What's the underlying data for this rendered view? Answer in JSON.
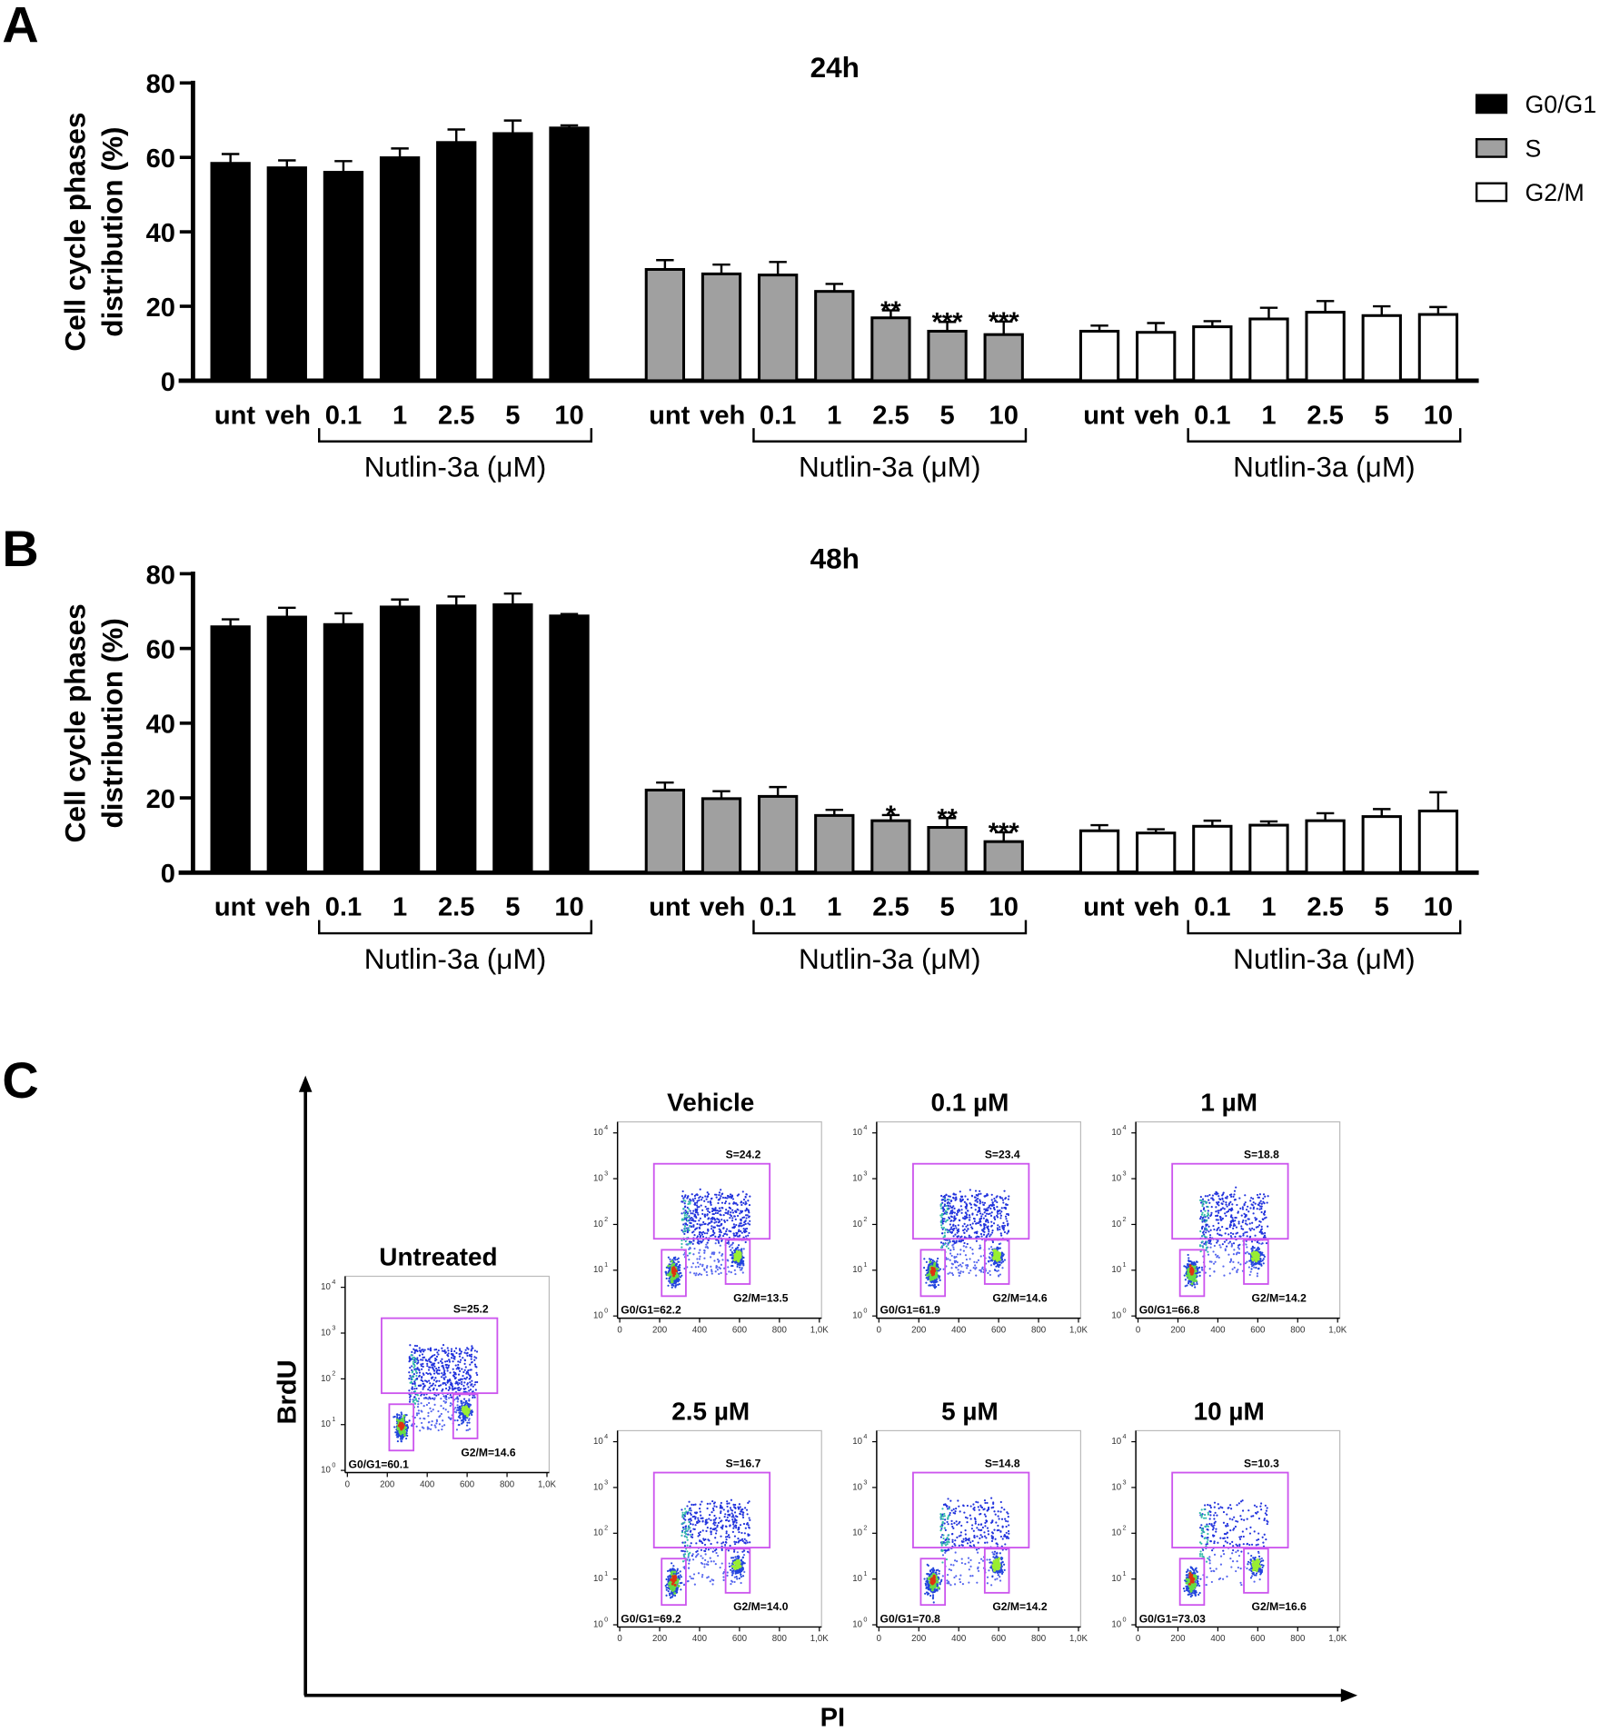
{
  "panel_labels": [
    "A",
    "B",
    "C"
  ],
  "legend": [
    {
      "label": "G0/G1",
      "color": "#000000"
    },
    {
      "label": "S",
      "color": "#a0a0a0"
    },
    {
      "label": "G2/M",
      "color": "#ffffff"
    }
  ],
  "chart_data": [
    {
      "type": "bar",
      "title": "24h",
      "ylabel": "Cell cycle phases distribution (%)",
      "ylim": [
        0,
        80
      ],
      "yticks": [
        "0",
        "20",
        "40",
        "60",
        "80"
      ],
      "categories": [
        "unt",
        "veh",
        "0.1",
        "1",
        "2.5",
        "5",
        "10"
      ],
      "group_label": "Nutlin-3a (μM)",
      "series": [
        {
          "name": "G0/G1",
          "values": [
            58.4,
            57.2,
            56.0,
            59.9,
            64.0,
            66.4,
            67.9
          ],
          "errors": [
            2.5,
            2.0,
            3.0,
            2.5,
            3.5,
            3.5,
            0.7
          ],
          "sig": [
            "",
            "",
            "",
            "",
            "",
            "",
            ""
          ]
        },
        {
          "name": "S",
          "values": [
            29.9,
            28.7,
            28.4,
            24.0,
            16.9,
            13.3,
            12.4
          ],
          "errors": [
            2.5,
            2.5,
            3.5,
            2.0,
            2.0,
            2.5,
            3.5
          ],
          "sig": [
            "",
            "",
            "",
            "",
            "**",
            "***",
            "***"
          ]
        },
        {
          "name": "G2/M",
          "values": [
            13.3,
            13.0,
            14.5,
            16.6,
            18.4,
            17.5,
            17.8
          ],
          "errors": [
            1.5,
            2.5,
            1.5,
            3.0,
            3.0,
            2.5,
            2.0
          ],
          "sig": [
            "",
            "",
            "",
            "",
            "",
            "",
            ""
          ]
        }
      ]
    },
    {
      "type": "bar",
      "title": "48h",
      "ylabel": "Cell cycle phases distribution (%)",
      "ylim": [
        0,
        80
      ],
      "yticks": [
        "0",
        "20",
        "40",
        "60",
        "80"
      ],
      "categories": [
        "unt",
        "veh",
        "0.1",
        "1",
        "2.5",
        "5",
        "10"
      ],
      "group_label": "Nutlin-3a (μM)",
      "series": [
        {
          "name": "G0/G1",
          "values": [
            65.8,
            68.4,
            66.4,
            71.1,
            71.4,
            71.7,
            68.7
          ],
          "errors": [
            2.0,
            2.5,
            3.0,
            2.0,
            2.5,
            3.0,
            0.5
          ],
          "sig": [
            "",
            "",
            "",
            "",
            "",
            "",
            ""
          ]
        },
        {
          "name": "S",
          "values": [
            22.1,
            19.8,
            20.4,
            15.3,
            13.9,
            12.1,
            8.3
          ],
          "errors": [
            2.0,
            2.0,
            2.5,
            1.5,
            1.5,
            2.5,
            2.5
          ],
          "sig": [
            "",
            "",
            "",
            "",
            "*",
            "**",
            "***"
          ]
        },
        {
          "name": "G2/M",
          "values": [
            11.2,
            10.6,
            12.4,
            12.7,
            13.9,
            15.0,
            16.5
          ],
          "errors": [
            1.5,
            1.0,
            1.5,
            1.0,
            2.0,
            2.0,
            5.0
          ],
          "sig": [
            "",
            "",
            "",
            "",
            "",
            "",
            ""
          ]
        }
      ]
    }
  ],
  "flow": {
    "y_axis_label": "BrdU",
    "x_axis_label": "PI",
    "x_ticks": [
      "0",
      "200",
      "400",
      "600",
      "800",
      "1,0K"
    ],
    "y_ticks": [
      "10",
      "10",
      "10",
      "10",
      "10"
    ],
    "y_exponents": [
      "0",
      "1",
      "2",
      "3",
      "4"
    ],
    "panels": [
      {
        "title": "Untreated",
        "s": "S=25.2",
        "g1": "G0/G1=60.1",
        "g2m": "G2/M=14.6",
        "density": 1.0
      },
      {
        "title": "Vehicle",
        "s": "S=24.2",
        "g1": "G0/G1=62.2",
        "g2m": "G2/M=13.5",
        "density": 1.0
      },
      {
        "title": "0.1 µM",
        "s": "S=23.4",
        "g1": "G0/G1=61.9",
        "g2m": "G2/M=14.6",
        "density": 0.95
      },
      {
        "title": "1 µM",
        "s": "S=18.8",
        "g1": "G0/G1=66.8",
        "g2m": "G2/M=14.2",
        "density": 0.75
      },
      {
        "title": "2.5 µM",
        "s": "S=16.7",
        "g1": "G0/G1=69.2",
        "g2m": "G2/M=14.0",
        "density": 0.7
      },
      {
        "title": "5 µM",
        "s": "S=14.8",
        "g1": "G0/G1=70.8",
        "g2m": "G2/M=14.2",
        "density": 0.55
      },
      {
        "title": "10 µM",
        "s": "S=10.3",
        "g1": "G0/G1=73.03",
        "g2m": "G2/M=16.6",
        "density": 0.35
      }
    ]
  }
}
